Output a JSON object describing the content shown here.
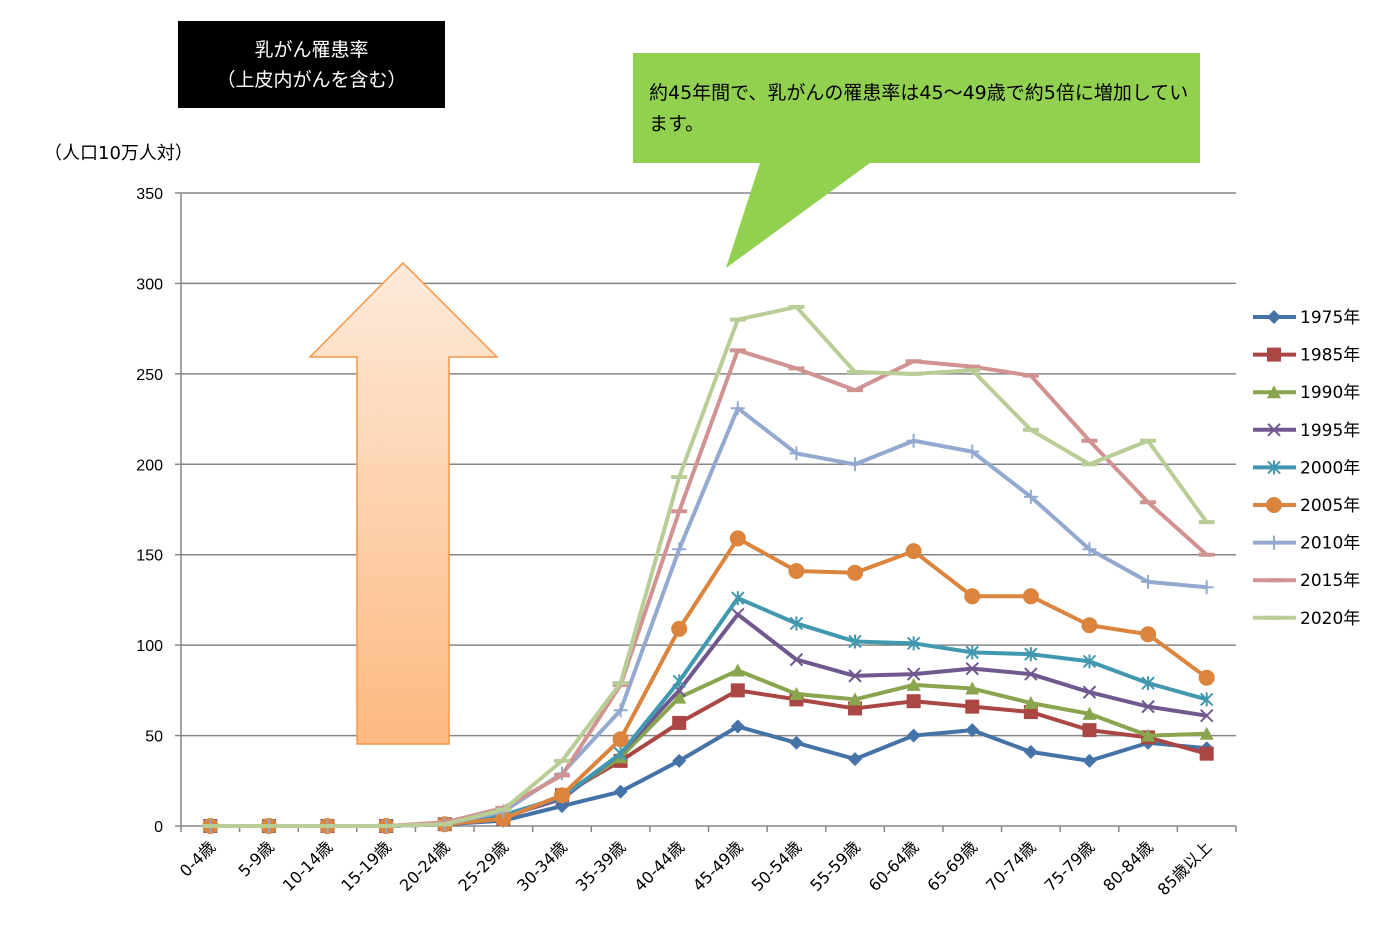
{
  "chart_data": {
    "type": "line",
    "title": "乳がん罹患率\n（上皮内がんを含む）",
    "ylabel": "（人口10万人対）",
    "xlabel": "",
    "ylim": [
      0,
      350
    ],
    "yticks": [
      0,
      50,
      100,
      150,
      200,
      250,
      300,
      350
    ],
    "grid": true,
    "legend_position": "right",
    "categories": [
      "0-4歳",
      "5-9歳",
      "10-14歳",
      "15-19歳",
      "20-24歳",
      "25-29歳",
      "30-34歳",
      "35-39歳",
      "40-44歳",
      "45-49歳",
      "50-54歳",
      "55-59歳",
      "60-64歳",
      "65-69歳",
      "70-74歳",
      "75-79歳",
      "80-84歳",
      "85歳以上"
    ],
    "series": [
      {
        "name": "1975年",
        "color": "#4572A7",
        "marker": "diamond",
        "values": [
          0,
          0,
          0,
          0,
          1,
          3,
          11,
          19,
          36,
          55,
          46,
          37,
          50,
          53,
          41,
          36,
          46,
          43
        ]
      },
      {
        "name": "1985年",
        "color": "#AA4643",
        "marker": "square",
        "values": [
          0,
          0,
          0,
          0,
          1,
          4,
          17,
          36,
          57,
          75,
          70,
          65,
          69,
          66,
          63,
          53,
          49,
          40
        ]
      },
      {
        "name": "1990年",
        "color": "#89A54E",
        "marker": "triangle",
        "values": [
          0,
          0,
          0,
          0,
          1,
          5,
          16,
          38,
          71,
          86,
          73,
          70,
          78,
          76,
          68,
          62,
          50,
          51
        ]
      },
      {
        "name": "1995年",
        "color": "#71588F",
        "marker": "x",
        "values": [
          0,
          0,
          0,
          0,
          1,
          5,
          15,
          40,
          75,
          117,
          92,
          83,
          84,
          87,
          84,
          74,
          66,
          61
        ]
      },
      {
        "name": "2000年",
        "color": "#4198AF",
        "marker": "asterisk",
        "values": [
          0,
          0,
          0,
          0,
          1,
          6,
          16,
          40,
          80,
          126,
          112,
          102,
          101,
          96,
          95,
          91,
          79,
          70
        ]
      },
      {
        "name": "2005年",
        "color": "#DB843D",
        "marker": "circle",
        "values": [
          0,
          0,
          0,
          0,
          1,
          4,
          17,
          48,
          109,
          159,
          141,
          140,
          152,
          127,
          127,
          111,
          106,
          82
        ]
      },
      {
        "name": "2010年",
        "color": "#93A9CF",
        "marker": "plus",
        "values": [
          0,
          0,
          0,
          0,
          1,
          8,
          29,
          64,
          153,
          231,
          206,
          200,
          213,
          207,
          182,
          153,
          135,
          132
        ]
      },
      {
        "name": "2015年",
        "color": "#D19392",
        "marker": "dash",
        "values": [
          0,
          0,
          0,
          0,
          2,
          10,
          28,
          78,
          174,
          263,
          253,
          241,
          257,
          254,
          249,
          213,
          179,
          150
        ]
      },
      {
        "name": "2020年",
        "color": "#B9CD96",
        "marker": "dash",
        "values": [
          0,
          0,
          0,
          0,
          1,
          9,
          36,
          79,
          193,
          280,
          287,
          251,
          250,
          252,
          219,
          200,
          213,
          168
        ]
      }
    ],
    "annotation": "約45年間で、乳がんの罹患率は45～49歳で約5倍に増加しています。",
    "arrow_color": "#F79646"
  }
}
